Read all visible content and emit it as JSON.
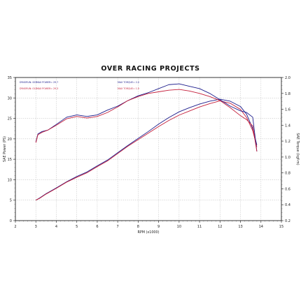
{
  "chart_data": {
    "type": "line",
    "title": "OVER RACING PROJECTS",
    "xlabel": "RPM (x1000)",
    "ylabel_left": "SAE Power (PS)",
    "ylabel_right": "SAE Torque (kgf-m)",
    "xlim": [
      2,
      15
    ],
    "ylim_left": [
      0,
      35
    ],
    "ylim_right": [
      0.2,
      2.0
    ],
    "x_ticks": [
      "2",
      "3",
      "4",
      "5",
      "6",
      "7",
      "8",
      "9",
      "10",
      "11",
      "12",
      "13",
      "14",
      "15"
    ],
    "y_left_ticks": [
      "0",
      "5",
      "10",
      "15",
      "20",
      "25",
      "30",
      "35"
    ],
    "y_right_ticks": [
      "0.2",
      "0.4",
      "0.6",
      "0.8",
      "1.0",
      "1.2",
      "1.4",
      "1.6",
      "1.8",
      "2.0"
    ],
    "grid": true,
    "legend": [
      {
        "run": "DYNORUN: 009",
        "power": "MAX POWER= 29.7",
        "torque": "MAX TORQUE= 2.0",
        "color": "#1c1c8c"
      },
      {
        "run": "DYNORUN: 010",
        "power": "MAX POWER= 29.3",
        "torque": "MAX TORQUE= 1.9",
        "color": "#c41e3a"
      }
    ],
    "series": [
      {
        "name": "DYNORUN: 009",
        "kind": "power",
        "axis": "left",
        "color": "#1c1c8c",
        "x": [
          3.0,
          3.2,
          3.5,
          4.0,
          4.5,
          5.0,
          5.5,
          6.0,
          6.5,
          7.0,
          7.5,
          8.0,
          8.5,
          9.0,
          9.5,
          10.0,
          10.5,
          11.0,
          11.5,
          12.0,
          12.5,
          13.0,
          13.3,
          13.6,
          13.8
        ],
        "y": [
          5.0,
          5.6,
          6.6,
          8.0,
          9.5,
          10.8,
          11.9,
          13.4,
          14.8,
          16.6,
          18.4,
          20.1,
          21.8,
          23.6,
          25.2,
          26.6,
          27.6,
          28.5,
          29.2,
          29.7,
          29.2,
          27.9,
          26.0,
          22.5,
          18.5
        ]
      },
      {
        "name": "DYNORUN: 010",
        "kind": "power",
        "axis": "left",
        "color": "#c41e3a",
        "x": [
          3.0,
          3.2,
          3.5,
          4.0,
          4.5,
          5.0,
          5.5,
          6.0,
          6.5,
          7.0,
          7.5,
          8.0,
          8.5,
          9.0,
          9.5,
          10.0,
          10.5,
          11.0,
          11.5,
          12.0,
          12.5,
          13.0,
          13.3,
          13.6,
          13.8
        ],
        "y": [
          5.0,
          5.5,
          6.5,
          7.9,
          9.4,
          10.6,
          11.7,
          13.2,
          14.6,
          16.4,
          18.2,
          19.8,
          21.4,
          23.0,
          24.5,
          25.8,
          26.8,
          27.8,
          28.6,
          29.3,
          28.7,
          27.2,
          25.2,
          22.0,
          18.0
        ]
      },
      {
        "name": "DYNORUN: 009",
        "kind": "torque",
        "axis": "right",
        "color": "#1c1c8c",
        "x": [
          3.0,
          3.1,
          3.3,
          3.6,
          4.0,
          4.5,
          5.0,
          5.5,
          6.0,
          6.5,
          7.0,
          7.5,
          8.0,
          8.5,
          9.0,
          9.5,
          10.0,
          10.5,
          11.0,
          11.5,
          12.0,
          12.5,
          13.0,
          13.3,
          13.6,
          13.8
        ],
        "y": [
          1.19,
          1.29,
          1.32,
          1.34,
          1.41,
          1.5,
          1.53,
          1.51,
          1.53,
          1.59,
          1.64,
          1.71,
          1.77,
          1.81,
          1.86,
          1.91,
          1.92,
          1.89,
          1.86,
          1.8,
          1.72,
          1.64,
          1.58,
          1.56,
          1.5,
          1.07
        ]
      },
      {
        "name": "DYNORUN: 010",
        "kind": "torque",
        "axis": "right",
        "color": "#c41e3a",
        "x": [
          3.0,
          3.1,
          3.3,
          3.6,
          4.0,
          4.5,
          5.0,
          5.5,
          6.0,
          6.5,
          7.0,
          7.5,
          8.0,
          8.5,
          9.0,
          9.5,
          10.0,
          10.5,
          11.0,
          11.5,
          12.0,
          12.5,
          13.0,
          13.3,
          13.6,
          13.8
        ],
        "y": [
          1.18,
          1.28,
          1.31,
          1.34,
          1.4,
          1.48,
          1.51,
          1.49,
          1.51,
          1.56,
          1.63,
          1.71,
          1.76,
          1.8,
          1.82,
          1.84,
          1.85,
          1.83,
          1.8,
          1.76,
          1.71,
          1.62,
          1.52,
          1.47,
          1.39,
          1.07
        ]
      }
    ]
  }
}
